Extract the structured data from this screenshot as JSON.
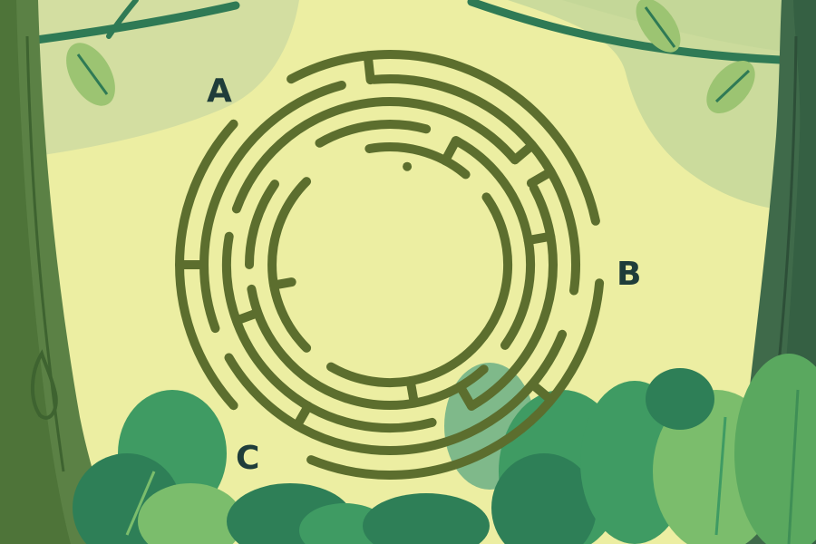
{
  "maze": {
    "labels": [
      {
        "id": "A",
        "text": "A"
      },
      {
        "id": "B",
        "text": "B"
      },
      {
        "id": "C",
        "text": "C"
      }
    ]
  },
  "colors": {
    "background": "#eceea2",
    "canopy": "#d2dda0",
    "canopy_light": "#c5d79a",
    "maze_wall": "#5c6e2e",
    "label_text": "#1f3d3a",
    "trunk_left": "#5b8145",
    "trunk_right": "#3f6a4a",
    "vine": "#2f7a55",
    "leaf": "#9cc472",
    "bush_dark": "#2e7f57",
    "bush_mid": "#3f9b63",
    "bush_light": "#7bbd6c"
  }
}
